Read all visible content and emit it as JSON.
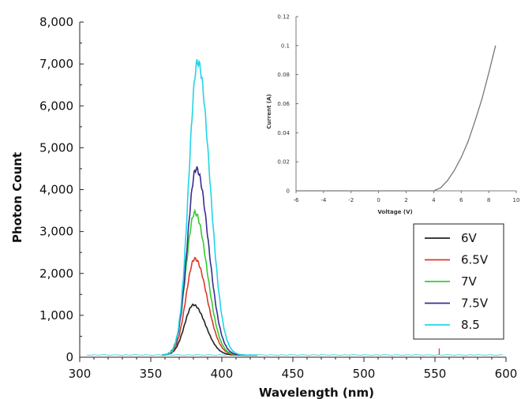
{
  "chart_data": [
    {
      "type": "line",
      "title": "",
      "xlabel": "Wavelength (nm)",
      "ylabel": "Photon Count",
      "xlim": [
        300,
        600
      ],
      "ylim": [
        0,
        8000
      ],
      "x_ticks": [
        300,
        350,
        400,
        450,
        500,
        550,
        600
      ],
      "y_ticks": [
        0,
        1000,
        2000,
        3000,
        4000,
        5000,
        6000,
        7000,
        8000
      ],
      "x_tick_labels": [
        "300",
        "350",
        "400",
        "450",
        "500",
        "550",
        "600"
      ],
      "y_tick_labels": [
        "0",
        "1,000",
        "2,000",
        "3,000",
        "4,000",
        "5,000",
        "6,000",
        "7,000",
        "8,000"
      ],
      "grid": false,
      "legend_position": "lower-right",
      "series": [
        {
          "name": "6V",
          "color": "#222222",
          "peak_x": 380,
          "peak_y": 1250
        },
        {
          "name": "6.5V",
          "color": "#d93a2b",
          "peak_x": 381,
          "peak_y": 2350
        },
        {
          "name": "7V",
          "color": "#33cc33",
          "peak_x": 381,
          "peak_y": 3450
        },
        {
          "name": "7.5V",
          "color": "#3a2d8f",
          "peak_x": 382,
          "peak_y": 4500
        },
        {
          "name": "8.5",
          "color": "#22d4e6",
          "peak_x": 383,
          "peak_y": 7050
        }
      ],
      "baseline": 50
    },
    {
      "type": "line",
      "title": "",
      "xlabel": "Voltage (V)",
      "ylabel": "Current (A)",
      "xlim": [
        -6,
        10
      ],
      "ylim": [
        0,
        0.12
      ],
      "x_ticks": [
        -6,
        -4,
        -2,
        0,
        2,
        4,
        6,
        8,
        10
      ],
      "y_ticks": [
        0,
        0.02,
        0.04,
        0.06,
        0.08,
        0.1,
        0.12
      ],
      "x_tick_labels": [
        "-6",
        "-4",
        "-2",
        "0",
        "2",
        "4",
        "6",
        "8",
        "10"
      ],
      "y_tick_labels": [
        "0",
        "0.02",
        "0.04",
        "0.06",
        "0.08",
        "0.1",
        "0.12"
      ],
      "grid": false,
      "series": [
        {
          "color": "#777777",
          "x": [
            -6,
            4,
            4.5,
            5,
            5.5,
            6,
            6.5,
            7,
            7.5,
            8,
            8.5
          ],
          "y": [
            0,
            0,
            0.002,
            0.007,
            0.014,
            0.023,
            0.034,
            0.048,
            0.063,
            0.081,
            0.1
          ]
        }
      ]
    }
  ]
}
